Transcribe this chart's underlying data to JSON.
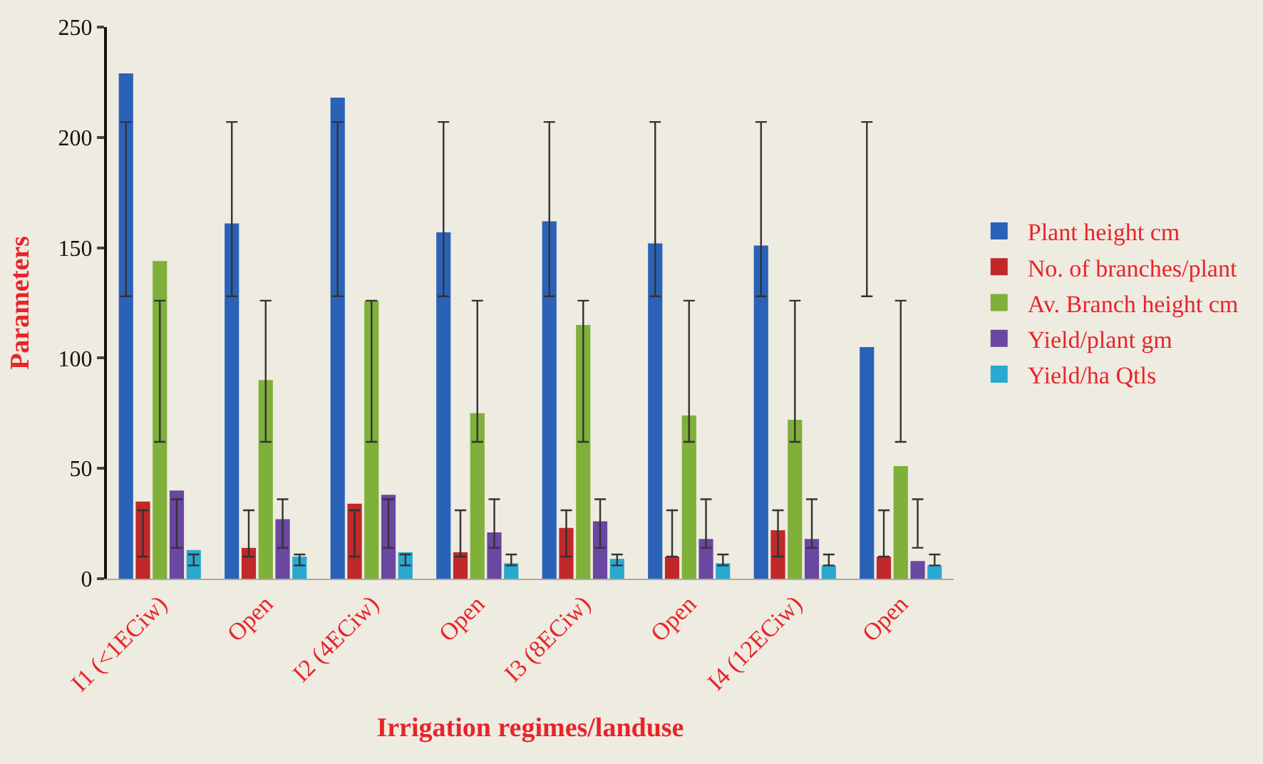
{
  "chart_data": {
    "type": "bar",
    "xlabel": "Irrigation regimes/landuse",
    "ylabel": "Parameters",
    "categories": [
      "I1 (<1ECiw)",
      "Open",
      "I2 (4ECiw)",
      "Open",
      "I3 (8ECiw)",
      "Open",
      "I4 (12ECiw)",
      "Open"
    ],
    "ylim": [
      0,
      250
    ],
    "yticks": [
      0,
      50,
      100,
      150,
      200,
      250
    ],
    "grid": false,
    "legend": "right",
    "series": [
      {
        "name": "Plant height cm",
        "color": "#2a62b8",
        "values": [
          229,
          161,
          218,
          157,
          162,
          152,
          151,
          105
        ],
        "errors": [
          [
            128,
            207
          ],
          [
            128,
            207
          ],
          [
            128,
            207
          ],
          [
            128,
            207
          ],
          [
            128,
            207
          ],
          [
            128,
            207
          ],
          [
            128,
            207
          ],
          [
            128,
            207
          ]
        ]
      },
      {
        "name": "No. of branches/plant",
        "color": "#c0282a",
        "values": [
          35,
          14,
          34,
          12,
          23,
          10,
          22,
          10
        ],
        "errors": [
          [
            10,
            31
          ],
          [
            10,
            31
          ],
          [
            10,
            31
          ],
          [
            10,
            31
          ],
          [
            10,
            31
          ],
          [
            10,
            31
          ],
          [
            10,
            31
          ],
          [
            10,
            31
          ]
        ]
      },
      {
        "name": "Av. Branch height cm",
        "color": "#7fb03a",
        "values": [
          144,
          90,
          126,
          75,
          115,
          74,
          72,
          51
        ],
        "errors": [
          [
            62,
            126
          ],
          [
            62,
            126
          ],
          [
            62,
            126
          ],
          [
            62,
            126
          ],
          [
            62,
            126
          ],
          [
            62,
            126
          ],
          [
            62,
            126
          ],
          [
            62,
            126
          ]
        ]
      },
      {
        "name": "Yield/plant gm",
        "color": "#6a47a0",
        "values": [
          40,
          27,
          38,
          21,
          26,
          18,
          18,
          8
        ],
        "errors": [
          [
            14,
            36
          ],
          [
            14,
            36
          ],
          [
            14,
            36
          ],
          [
            14,
            36
          ],
          [
            14,
            36
          ],
          [
            14,
            36
          ],
          [
            14,
            36
          ],
          [
            14,
            36
          ]
        ]
      },
      {
        "name": "Yield/ha Qtls",
        "color": "#2aa8d0",
        "values": [
          13,
          10,
          12,
          7,
          9,
          7,
          6,
          6
        ],
        "errors": [
          [
            6,
            11
          ],
          [
            6,
            11
          ],
          [
            6,
            11
          ],
          [
            6,
            11
          ],
          [
            6,
            11
          ],
          [
            6,
            11
          ],
          [
            6,
            11
          ],
          [
            6,
            11
          ]
        ]
      }
    ]
  }
}
